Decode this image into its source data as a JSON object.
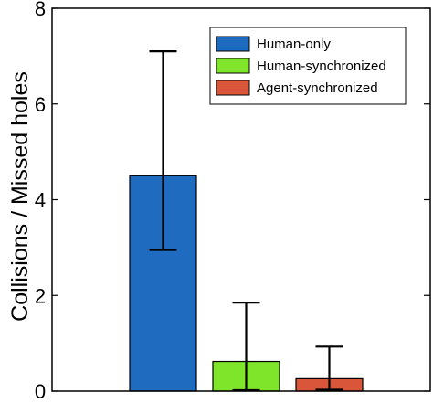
{
  "chart_data": {
    "type": "bar",
    "title": "",
    "xlabel": "",
    "ylabel": "Collisions / Missed holes",
    "ylim": [
      0,
      8
    ],
    "yticks": [
      0,
      2,
      4,
      6,
      8
    ],
    "grid": false,
    "legend_position": "top-right",
    "series": [
      {
        "name": "Human-only",
        "value": 4.5,
        "error_low": 2.95,
        "error_high": 7.1,
        "color": "#1f6bbf"
      },
      {
        "name": "Human-synchronized",
        "value": 0.62,
        "error_low": 0.02,
        "error_high": 1.85,
        "color": "#7fe52a"
      },
      {
        "name": "Agent-synchronized",
        "value": 0.26,
        "error_low": 0.03,
        "error_high": 0.93,
        "color": "#d9563a"
      }
    ]
  }
}
